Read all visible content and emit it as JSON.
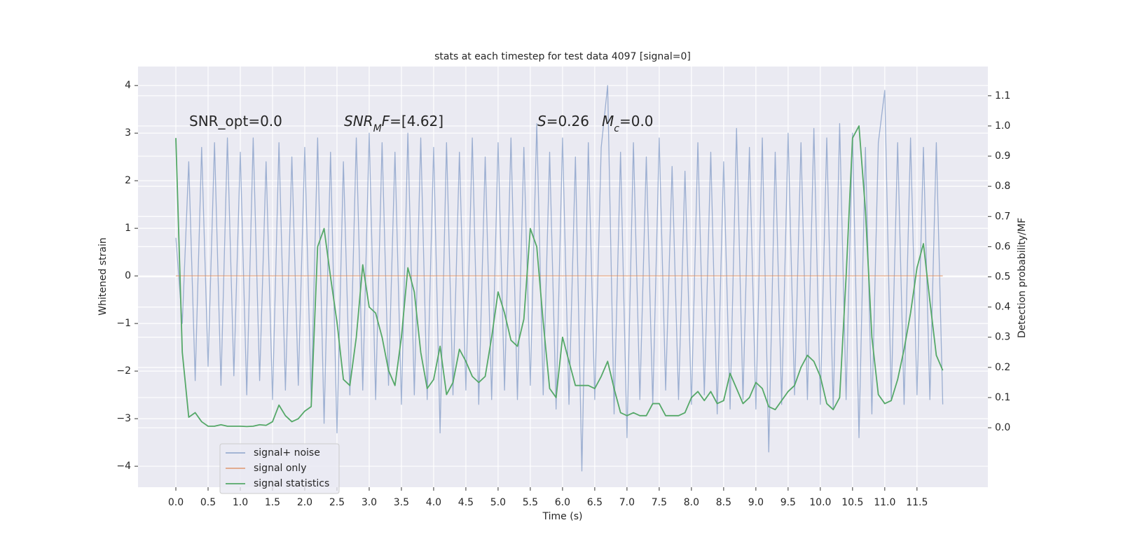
{
  "chart_data": {
    "type": "line",
    "title": "stats at each timestep for test data 4097 [signal=0]",
    "xlabel": "Time (s)",
    "ylabel": "Whitened strain",
    "y2label": "Detection probability/MF",
    "x": [
      0,
      0.1,
      0.2,
      0.3,
      0.4,
      0.5,
      0.6,
      0.7,
      0.8,
      0.9,
      1,
      1.1,
      1.2,
      1.3,
      1.4,
      1.5,
      1.6,
      1.7,
      1.8,
      1.9,
      2,
      2.1,
      2.2,
      2.3,
      2.4,
      2.5,
      2.6,
      2.7,
      2.8,
      2.9,
      3,
      3.1,
      3.2,
      3.3,
      3.4,
      3.5,
      3.6,
      3.7,
      3.8,
      3.9,
      4,
      4.1,
      4.2,
      4.3,
      4.4,
      4.5,
      4.6,
      4.7,
      4.8,
      4.9,
      5,
      5.1,
      5.2,
      5.3,
      5.4,
      5.5,
      5.6,
      5.7,
      5.8,
      5.9,
      6,
      6.1,
      6.2,
      6.3,
      6.4,
      6.5,
      6.6,
      6.7,
      6.8,
      6.9,
      7,
      7.1,
      7.2,
      7.3,
      7.4,
      7.5,
      7.6,
      7.7,
      7.8,
      7.9,
      8,
      8.1,
      8.2,
      8.3,
      8.4,
      8.5,
      8.6,
      8.7,
      8.8,
      8.9,
      9,
      9.1,
      9.2,
      9.3,
      9.4,
      9.5,
      9.6,
      9.7,
      9.8,
      9.9,
      10,
      10.1,
      10.2,
      10.3,
      10.4,
      10.5,
      10.6,
      10.7,
      10.8,
      10.9,
      11,
      11.1,
      11.2,
      11.3,
      11.4,
      11.5,
      11.6,
      11.7,
      11.8,
      11.9
    ],
    "series": [
      {
        "name": "signal+ noise",
        "color": "#4c72b0",
        "opacity": 0.5,
        "values": [
          0.8,
          -1.0,
          2.4,
          -2.2,
          2.7,
          -1.9,
          2.8,
          -2.3,
          2.9,
          -2.1,
          2.6,
          -2.5,
          2.9,
          -2.2,
          2.4,
          -2.6,
          2.8,
          -2.4,
          2.5,
          -2.3,
          2.7,
          -2.6,
          2.9,
          -3.1,
          2.6,
          -3.3,
          2.4,
          -2.5,
          2.9,
          -2.4,
          3.0,
          -2.6,
          2.8,
          -2.3,
          2.6,
          -2.7,
          3.0,
          -2.5,
          2.9,
          -2.6,
          2.7,
          -3.3,
          2.8,
          -2.5,
          2.6,
          -2.4,
          2.9,
          -2.7,
          2.5,
          -2.6,
          2.8,
          -2.4,
          2.9,
          -2.6,
          2.7,
          -2.3,
          3.2,
          -2.5,
          2.6,
          -2.8,
          2.9,
          -2.7,
          2.5,
          -4.1,
          2.8,
          -2.6,
          2.7,
          4.0,
          -2.9,
          2.6,
          -3.4,
          2.8,
          -2.6,
          2.5,
          -2.7,
          2.9,
          -2.4,
          2.3,
          -2.6,
          2.2,
          -2.7,
          2.8,
          -2.5,
          2.6,
          -2.9,
          2.4,
          -2.8,
          3.1,
          -2.6,
          2.7,
          -2.8,
          2.9,
          -3.7,
          2.6,
          -2.7,
          3.0,
          -2.5,
          2.8,
          -2.6,
          3.1,
          -2.7,
          2.9,
          -2.8,
          3.2,
          -2.6,
          3.0,
          -3.4,
          2.7,
          -2.9,
          2.8,
          3.9,
          -2.6,
          2.8,
          -2.7,
          2.9,
          -2.5,
          2.7,
          -2.6,
          2.8,
          -2.7
        ]
      },
      {
        "name": "signal only",
        "color": "#dd8452",
        "opacity": 0.7,
        "values": [
          0,
          0,
          0,
          0,
          0,
          0,
          0,
          0,
          0,
          0,
          0,
          0,
          0,
          0,
          0,
          0,
          0,
          0,
          0,
          0,
          0,
          0,
          0,
          0,
          0,
          0,
          0,
          0,
          0,
          0,
          0,
          0,
          0,
          0,
          0,
          0,
          0,
          0,
          0,
          0,
          0,
          0,
          0,
          0,
          0,
          0,
          0,
          0,
          0,
          0,
          0,
          0,
          0,
          0,
          0,
          0,
          0,
          0,
          0,
          0,
          0,
          0,
          0,
          0,
          0,
          0,
          0,
          0,
          0,
          0,
          0,
          0,
          0,
          0,
          0,
          0,
          0,
          0,
          0,
          0,
          0,
          0,
          0,
          0,
          0,
          0,
          0,
          0,
          0,
          0,
          0,
          0,
          0,
          0,
          0,
          0,
          0,
          0,
          0,
          0,
          0,
          0,
          0,
          0,
          0,
          0,
          0,
          0,
          0,
          0,
          0,
          0,
          0,
          0,
          0,
          0,
          0,
          0,
          0,
          0
        ]
      },
      {
        "name": "signal statistics",
        "color": "#55a868",
        "opacity": 1,
        "axis": "y2",
        "values": [
          0.96,
          0.25,
          0.035,
          0.05,
          0.02,
          0.005,
          0.005,
          0.01,
          0.005,
          0.005,
          0.005,
          0.004,
          0.005,
          0.01,
          0.008,
          0.02,
          0.075,
          0.04,
          0.02,
          0.03,
          0.055,
          0.07,
          0.6,
          0.66,
          0.5,
          0.35,
          0.16,
          0.14,
          0.3,
          0.54,
          0.4,
          0.38,
          0.3,
          0.19,
          0.14,
          0.3,
          0.53,
          0.45,
          0.25,
          0.13,
          0.16,
          0.27,
          0.11,
          0.15,
          0.26,
          0.22,
          0.17,
          0.15,
          0.17,
          0.3,
          0.45,
          0.38,
          0.29,
          0.27,
          0.36,
          0.66,
          0.6,
          0.35,
          0.13,
          0.1,
          0.3,
          0.22,
          0.14,
          0.14,
          0.14,
          0.13,
          0.17,
          0.22,
          0.13,
          0.05,
          0.04,
          0.05,
          0.04,
          0.04,
          0.08,
          0.08,
          0.04,
          0.04,
          0.04,
          0.05,
          0.1,
          0.12,
          0.09,
          0.12,
          0.08,
          0.09,
          0.18,
          0.13,
          0.08,
          0.1,
          0.15,
          0.13,
          0.07,
          0.06,
          0.09,
          0.12,
          0.14,
          0.2,
          0.24,
          0.22,
          0.17,
          0.08,
          0.06,
          0.1,
          0.5,
          0.96,
          1.0,
          0.72,
          0.3,
          0.11,
          0.08,
          0.09,
          0.16,
          0.26,
          0.38,
          0.53,
          0.61,
          0.42,
          0.24,
          0.19
        ]
      }
    ],
    "xlim": [
      -0.587,
      12.6
    ],
    "xticks": [
      {
        "value": 0,
        "label": "0.0"
      },
      0.5,
      {
        "value": 1,
        "label": "1.0"
      },
      1.5,
      {
        "value": 2,
        "label": "2.0"
      },
      2.5,
      {
        "value": 3,
        "label": "3.0"
      },
      3.5,
      {
        "value": 4,
        "label": "4.0"
      },
      4.5,
      {
        "value": 5,
        "label": "5.0"
      },
      5.5,
      {
        "value": 6,
        "label": "6.0"
      },
      6.5,
      {
        "value": 7,
        "label": "7.0"
      },
      7.5,
      {
        "value": 8,
        "label": "8.0"
      },
      8.5,
      {
        "value": 9,
        "label": "9.0"
      },
      9.5,
      {
        "value": 10,
        "label": "10.0"
      },
      10.5,
      {
        "value": 11,
        "label": "11.0"
      },
      11.5
    ],
    "ylim": [
      -4.44,
      4.4
    ],
    "yticks": [
      {
        "value": -4,
        "label": "−4"
      },
      {
        "value": -3,
        "label": "−3"
      },
      {
        "value": -2,
        "label": "−2"
      },
      {
        "value": -1,
        "label": "−1"
      },
      0,
      1,
      2,
      3,
      4
    ],
    "y2lim": [
      -0.197,
      1.197
    ],
    "y2ticks": [
      {
        "value": 0,
        "label": "0.0"
      },
      0.1,
      0.2,
      0.3,
      0.4,
      0.5,
      0.6,
      0.7,
      0.8,
      0.9,
      {
        "value": 1,
        "label": "1.0"
      },
      1.1
    ],
    "grid": true,
    "background": "#eaeaf2",
    "legend": "lower left",
    "annotations": [
      [
        {
          "text": "SNR_opt=0.0"
        }
      ],
      [
        {
          "text": "SNR",
          "italic": true
        },
        {
          "text": "M",
          "italic": true,
          "sub": true
        },
        {
          "text": "F",
          "italic": true
        },
        {
          "text": "=[4.62]"
        }
      ],
      [
        {
          "text": "S",
          "italic": true
        },
        {
          "text": "=0.26"
        }
      ],
      [
        {
          "text": "M",
          "italic": true
        },
        {
          "text": "c",
          "italic": true,
          "sub": true
        },
        {
          "text": "=0.0"
        }
      ]
    ]
  }
}
